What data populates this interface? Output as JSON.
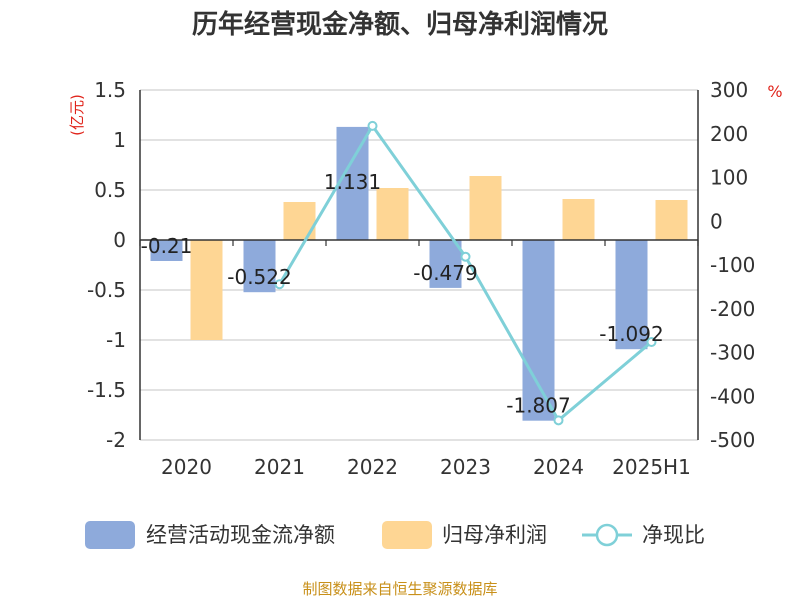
{
  "chart_data": {
    "type": "bar",
    "title": "历年经营现金净额、归母净利润情况",
    "categories": [
      "2020",
      "2021",
      "2022",
      "2023",
      "2024",
      "2025H1"
    ],
    "series": [
      {
        "name": "经营活动现金流净额",
        "type": "bar",
        "axis": "left",
        "color": "#8eaadb",
        "values": [
          -0.21,
          -0.522,
          1.131,
          -0.479,
          -1.807,
          -1.092
        ],
        "labels": [
          "-0.21",
          "-0.522",
          "1.131",
          "-0.479",
          "-1.807",
          "-1.092"
        ]
      },
      {
        "name": "归母净利润",
        "type": "bar",
        "axis": "left",
        "color": "#fed694",
        "values": [
          -1.0,
          0.38,
          0.52,
          0.64,
          0.41,
          0.4
        ]
      },
      {
        "name": "净现比",
        "type": "line",
        "axis": "right",
        "color": "#7fd0d8",
        "values": [
          null,
          -144,
          218,
          -81,
          -455,
          -276
        ]
      }
    ],
    "y_left": {
      "unit": "(亿元)",
      "ylim": [
        -2,
        1.5
      ],
      "ticks": [
        "1.5",
        "1",
        "0.5",
        "0",
        "-0.5",
        "-1",
        "-1.5",
        "-2"
      ]
    },
    "y_right": {
      "unit": "%",
      "ylim": [
        -500,
        300
      ],
      "ticks": [
        "300",
        "200",
        "100",
        "0",
        "-100",
        "-200",
        "-300",
        "-400",
        "-500"
      ]
    },
    "grid": true,
    "legend_position": "bottom",
    "source": "制图数据来自恒生聚源数据库"
  }
}
